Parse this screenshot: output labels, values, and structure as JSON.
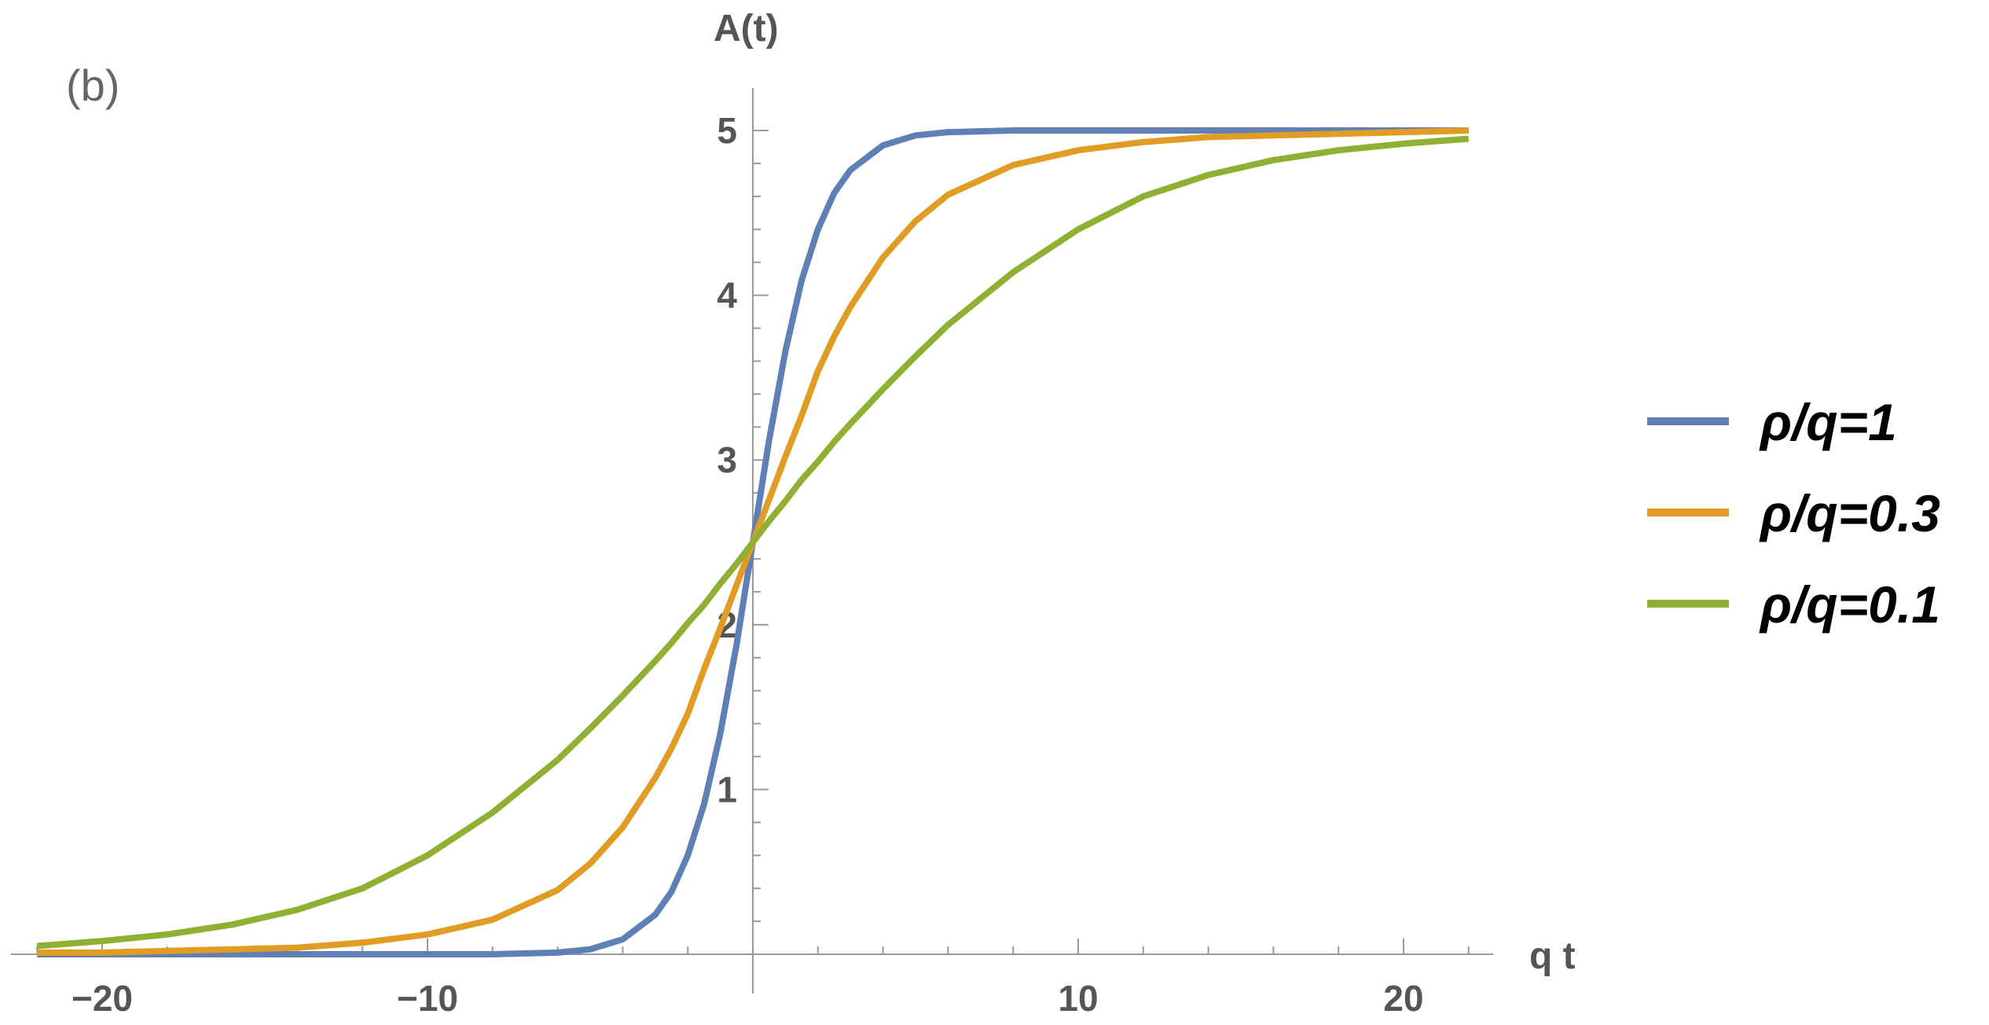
{
  "chart_data": {
    "type": "line",
    "panel_label": "(b)",
    "title": "",
    "xlabel": "q t",
    "ylabel": "A(t)",
    "xlim": [
      -22,
      22
    ],
    "ylim": [
      0,
      5.2
    ],
    "x_ticks": [
      -20,
      -10,
      10,
      20
    ],
    "x_tick_labels": [
      "−20",
      "−10",
      "10",
      "20"
    ],
    "y_ticks": [
      1,
      2,
      3,
      4,
      5
    ],
    "y_tick_labels": [
      "1",
      "2",
      "3",
      "4",
      "5"
    ],
    "grid": false,
    "legend_position": "right",
    "x": [
      -22,
      -20,
      -18,
      -16,
      -14,
      -12,
      -10,
      -8,
      -6,
      -5,
      -4,
      -3,
      -2.5,
      -2,
      -1.5,
      -1,
      -0.5,
      0,
      0.5,
      1,
      1.5,
      2,
      2.5,
      3,
      4,
      5,
      6,
      8,
      10,
      12,
      14,
      16,
      18,
      20,
      22
    ],
    "series": [
      {
        "name": "ρ/q=1",
        "color": "#5E81B5",
        "values": [
          0.0,
          0.0,
          0.0,
          0.0,
          0.0,
          0.0,
          0.0,
          0.0,
          0.01,
          0.03,
          0.09,
          0.24,
          0.38,
          0.6,
          0.91,
          1.34,
          1.88,
          2.5,
          3.12,
          3.66,
          4.09,
          4.4,
          4.62,
          4.76,
          4.91,
          4.97,
          4.99,
          5.0,
          5.0,
          5.0,
          5.0,
          5.0,
          5.0,
          5.0,
          5.0
        ]
      },
      {
        "name": "ρ/q=0.3",
        "color": "#E19C24",
        "values": [
          0.01,
          0.01,
          0.02,
          0.03,
          0.04,
          0.07,
          0.12,
          0.21,
          0.39,
          0.55,
          0.77,
          1.07,
          1.25,
          1.46,
          1.73,
          1.98,
          2.24,
          2.5,
          2.76,
          3.02,
          3.27,
          3.54,
          3.75,
          3.93,
          4.23,
          4.45,
          4.61,
          4.79,
          4.88,
          4.93,
          4.96,
          4.97,
          4.98,
          4.99,
          5.0
        ]
      },
      {
        "name": "ρ/q=0.1",
        "color": "#8FB032",
        "values": [
          0.05,
          0.08,
          0.12,
          0.18,
          0.27,
          0.4,
          0.6,
          0.86,
          1.18,
          1.37,
          1.57,
          1.78,
          1.89,
          2.01,
          2.12,
          2.25,
          2.37,
          2.5,
          2.63,
          2.75,
          2.88,
          2.99,
          3.11,
          3.22,
          3.43,
          3.63,
          3.82,
          4.14,
          4.4,
          4.6,
          4.73,
          4.82,
          4.88,
          4.92,
          4.95
        ]
      }
    ]
  }
}
